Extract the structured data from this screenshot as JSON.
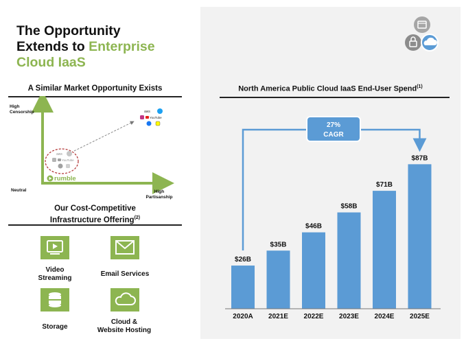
{
  "left": {
    "title_line1": "The Opportunity",
    "title_line2_plain": "Extends to ",
    "title_line2_accent": "Enterprise",
    "title_line3_accent": "Cloud IaaS",
    "market_heading": "A Similar Market Opportunity Exists",
    "axis": {
      "y_label_line1": "High",
      "y_label_line2": "Censorship",
      "origin_label": "Neutral",
      "x_label_line1": "High",
      "x_label_line2": "Partisanship"
    },
    "rumble_label": "rumble",
    "aws_label": "aws",
    "youtube_label": "YouTube",
    "offering_heading_line1": "Our Cost-Competitive",
    "offering_heading_line2": "Infrastructure Offering",
    "offering_note": "(2)",
    "services": [
      {
        "label_line1": "Video",
        "label_line2": "Streaming",
        "icon": "video-player-icon"
      },
      {
        "label_line1": "Email Services",
        "label_line2": "",
        "icon": "envelope-icon"
      },
      {
        "label_line1": "Storage",
        "label_line2": "",
        "icon": "database-icon"
      },
      {
        "label_line1": "Cloud &",
        "label_line2": "Website Hosting",
        "icon": "cloud-icon"
      }
    ]
  },
  "right": {
    "chart_title": "North America Public Cloud IaaS End-User Spend",
    "chart_note": "(1)",
    "cagr_value": "27%",
    "cagr_label": "CAGR"
  },
  "colors": {
    "accent_green": "#8db551",
    "bar_blue": "#5b9bd5",
    "panel_gray": "#f2f2f2"
  },
  "chart_data": {
    "type": "bar",
    "title": "North America Public Cloud IaaS End-User Spend",
    "categories": [
      "2020A",
      "2021E",
      "2022E",
      "2023E",
      "2024E",
      "2025E"
    ],
    "values": [
      26,
      35,
      46,
      58,
      71,
      87
    ],
    "value_labels": [
      "$26B",
      "$35B",
      "$46B",
      "$58B",
      "$71B",
      "$87B"
    ],
    "unit": "$B",
    "ylim": [
      0,
      95
    ],
    "annotation": "27% CAGR",
    "xlabel": "",
    "ylabel": "",
    "grid": false
  }
}
